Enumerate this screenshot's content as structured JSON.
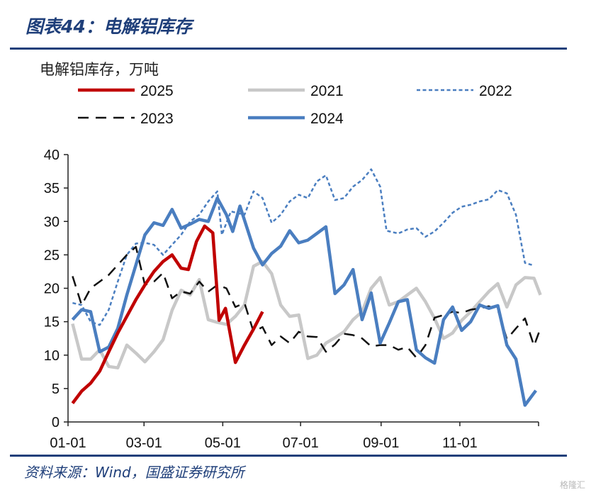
{
  "header": {
    "title": "图表44：电解铝库存"
  },
  "source": "资料来源：Wind，国盛证券研究所",
  "watermark": "格隆汇",
  "chart_data": {
    "type": "line",
    "ylabel": "电解铝库存，万吨",
    "ylim": [
      0,
      40
    ],
    "yticks": [
      0,
      5,
      10,
      15,
      20,
      25,
      30,
      35,
      40
    ],
    "xlim": [
      0,
      52
    ],
    "xticks": [
      {
        "label": "01-01",
        "x": 0
      },
      {
        "label": "03-01",
        "x": 8.4
      },
      {
        "label": "05-01",
        "x": 17.1
      },
      {
        "label": "07-01",
        "x": 25.7
      },
      {
        "label": "09-01",
        "x": 34.6
      },
      {
        "label": "11-01",
        "x": 43.3
      }
    ],
    "legend_order": [
      "2025",
      "2021",
      "2022",
      "2023",
      "2024"
    ],
    "series": [
      {
        "name": "2025",
        "color": "#c00000",
        "style": "solid",
        "width": 4.5,
        "points": [
          [
            0.5,
            2.8
          ],
          [
            1.5,
            4.6
          ],
          [
            2.5,
            5.8
          ],
          [
            3.5,
            7.6
          ],
          [
            4.5,
            10.5
          ],
          [
            5.5,
            13.3
          ],
          [
            6.5,
            15.8
          ],
          [
            7.5,
            18.3
          ],
          [
            8.5,
            20.5
          ],
          [
            9.5,
            22.5
          ],
          [
            10.5,
            24
          ],
          [
            11.5,
            25
          ],
          [
            12.5,
            23
          ],
          [
            13.3,
            22.8
          ],
          [
            14.2,
            27
          ],
          [
            15.1,
            29.3
          ],
          [
            16,
            28.3
          ],
          [
            16.7,
            15.2
          ],
          [
            17.4,
            17
          ],
          [
            18.5,
            8.9
          ],
          [
            19.5,
            11.5
          ],
          [
            20.5,
            13.9
          ],
          [
            21.5,
            16.5
          ]
        ]
      },
      {
        "name": "2021",
        "color": "#c8c8c8",
        "style": "solid",
        "width": 4.5,
        "points": [
          [
            0.5,
            14.7
          ],
          [
            1.5,
            9.4
          ],
          [
            2.5,
            9.4
          ],
          [
            3.5,
            10.8
          ],
          [
            4.5,
            8.3
          ],
          [
            5.5,
            8.1
          ],
          [
            6.5,
            11.5
          ],
          [
            7.5,
            10.3
          ],
          [
            8.5,
            9
          ],
          [
            9.5,
            10.5
          ],
          [
            10.5,
            12.3
          ],
          [
            11.5,
            16.7
          ],
          [
            12.5,
            19.7
          ],
          [
            13.5,
            19
          ],
          [
            14.5,
            21.3
          ],
          [
            15.5,
            15.3
          ],
          [
            16.5,
            14.9
          ],
          [
            17.5,
            14.6
          ],
          [
            18.5,
            15.8
          ],
          [
            19.5,
            17.5
          ],
          [
            20.5,
            23.3
          ],
          [
            21.5,
            24
          ],
          [
            22.5,
            22.2
          ],
          [
            23.5,
            17.5
          ],
          [
            24.5,
            15.8
          ],
          [
            25.5,
            16
          ],
          [
            26.5,
            9.5
          ],
          [
            27.5,
            10
          ],
          [
            28.5,
            11.8
          ],
          [
            29.5,
            12.6
          ],
          [
            30.5,
            13.5
          ],
          [
            31.5,
            15.3
          ],
          [
            32.5,
            16.5
          ],
          [
            33.5,
            20
          ],
          [
            34.5,
            21.6
          ],
          [
            35.5,
            17.5
          ],
          [
            36.5,
            18
          ],
          [
            37.5,
            19
          ],
          [
            38.5,
            20
          ],
          [
            39.5,
            18
          ],
          [
            40.5,
            15.5
          ],
          [
            41.5,
            12.5
          ],
          [
            42.5,
            13.3
          ],
          [
            43.5,
            15.2
          ],
          [
            44.5,
            16.5
          ],
          [
            45.5,
            18
          ],
          [
            46.5,
            19.5
          ],
          [
            47.5,
            20.7
          ],
          [
            48.5,
            17.2
          ],
          [
            49.5,
            20.5
          ],
          [
            50.5,
            21.6
          ],
          [
            51.5,
            21.5
          ],
          [
            52.2,
            19
          ]
        ]
      },
      {
        "name": "2022",
        "color": "#4a7ec0",
        "style": "dotted",
        "width": 2.5,
        "points": [
          [
            0.5,
            17.8
          ],
          [
            1.5,
            17.5
          ],
          [
            2.5,
            15
          ],
          [
            3.5,
            14.5
          ],
          [
            4.5,
            16.8
          ],
          [
            5.5,
            21
          ],
          [
            6.5,
            25
          ],
          [
            7.5,
            26.7
          ],
          [
            8.5,
            26.8
          ],
          [
            9.5,
            26.5
          ],
          [
            10.5,
            25
          ],
          [
            11.5,
            26.5
          ],
          [
            12.5,
            28
          ],
          [
            13.5,
            30
          ],
          [
            14.5,
            31
          ],
          [
            15.5,
            33
          ],
          [
            16.5,
            34.5
          ],
          [
            17,
            28
          ],
          [
            18,
            31.5
          ],
          [
            19.5,
            31
          ],
          [
            20.5,
            34.5
          ],
          [
            21.5,
            33.5
          ],
          [
            22.5,
            29.8
          ],
          [
            23.5,
            31
          ],
          [
            24.5,
            33
          ],
          [
            25.5,
            34
          ],
          [
            26.5,
            33.5
          ],
          [
            27.5,
            36
          ],
          [
            28.5,
            36.9
          ],
          [
            29.5,
            33.2
          ],
          [
            30.5,
            33.5
          ],
          [
            31.5,
            35.2
          ],
          [
            32.5,
            36.2
          ],
          [
            33.5,
            37.8
          ],
          [
            34.5,
            35.2
          ],
          [
            35.2,
            28.6
          ],
          [
            36.5,
            28.2
          ],
          [
            37.5,
            28.8
          ],
          [
            38.5,
            29
          ],
          [
            39.5,
            27.7
          ],
          [
            40.5,
            28.5
          ],
          [
            41.5,
            29.8
          ],
          [
            42.5,
            31.3
          ],
          [
            43.5,
            32.2
          ],
          [
            44.5,
            32.5
          ],
          [
            45.5,
            33
          ],
          [
            46.5,
            33.3
          ],
          [
            47.5,
            34.7
          ],
          [
            48.5,
            34.2
          ],
          [
            49.5,
            31
          ],
          [
            50.5,
            23.8
          ],
          [
            51.5,
            23.4
          ]
        ]
      },
      {
        "name": "2023",
        "color": "#111111",
        "style": "dashed",
        "width": 2.5,
        "points": [
          [
            0.5,
            21.8
          ],
          [
            1.5,
            17.5
          ],
          [
            2.5,
            20
          ],
          [
            3.5,
            21
          ],
          [
            4.5,
            22
          ],
          [
            5.5,
            23.5
          ],
          [
            6.5,
            25
          ],
          [
            7.5,
            26.2
          ],
          [
            8.5,
            20.5
          ],
          [
            9.5,
            21
          ],
          [
            10.5,
            22.3
          ],
          [
            11.5,
            18.5
          ],
          [
            12.5,
            19.5
          ],
          [
            13.5,
            19.2
          ],
          [
            14.5,
            21
          ],
          [
            15.5,
            19.5
          ],
          [
            16.5,
            20.5
          ],
          [
            17.5,
            20
          ],
          [
            18.5,
            17.2
          ],
          [
            19.5,
            17.8
          ],
          [
            20.5,
            13.5
          ],
          [
            21.5,
            14.2
          ],
          [
            22.5,
            11.5
          ],
          [
            23.5,
            12.8
          ],
          [
            24.5,
            11.8
          ],
          [
            25.5,
            13.5
          ],
          [
            26.5,
            12.8
          ],
          [
            27.5,
            12.7
          ],
          [
            28.5,
            10.5
          ],
          [
            29.5,
            11.6
          ],
          [
            30.5,
            13.2
          ],
          [
            31.5,
            13
          ],
          [
            32.5,
            12.5
          ],
          [
            33.5,
            11.3
          ],
          [
            34.5,
            11.5
          ],
          [
            35.5,
            11.5
          ],
          [
            36.5,
            10.8
          ],
          [
            37.5,
            11.2
          ],
          [
            38.5,
            9.6
          ],
          [
            39.5,
            11.5
          ],
          [
            40.5,
            15.6
          ],
          [
            41.5,
            16
          ],
          [
            42.5,
            16.5
          ],
          [
            43.5,
            16.3
          ],
          [
            44.5,
            16.8
          ],
          [
            45.5,
            17
          ],
          [
            46.5,
            17.3
          ],
          [
            47.5,
            16.8
          ],
          [
            48.5,
            12.4
          ],
          [
            49.5,
            14
          ],
          [
            50.5,
            15.5
          ],
          [
            51.5,
            11.4
          ],
          [
            52.2,
            14
          ]
        ]
      },
      {
        "name": "2024",
        "color": "#4a7ec0",
        "style": "solid",
        "width": 4.5,
        "points": [
          [
            0.5,
            15.3
          ],
          [
            1.5,
            16.8
          ],
          [
            2.5,
            16.5
          ],
          [
            3.5,
            10.5
          ],
          [
            4.5,
            11.2
          ],
          [
            5.5,
            14
          ],
          [
            6.5,
            19
          ],
          [
            7.5,
            23.5
          ],
          [
            8.5,
            28
          ],
          [
            9.5,
            29.8
          ],
          [
            10.5,
            29.4
          ],
          [
            11.5,
            31.8
          ],
          [
            12.5,
            29
          ],
          [
            13.5,
            29.6
          ],
          [
            14.5,
            30.3
          ],
          [
            15.5,
            30
          ],
          [
            16.5,
            33.5
          ],
          [
            17.5,
            31
          ],
          [
            18.2,
            28.5
          ],
          [
            19,
            32.3
          ],
          [
            20.5,
            26
          ],
          [
            21.5,
            23.5
          ],
          [
            22.5,
            25.2
          ],
          [
            23.5,
            26.3
          ],
          [
            24.5,
            28.6
          ],
          [
            25.5,
            26.8
          ],
          [
            26.5,
            27.2
          ],
          [
            27.5,
            28.2
          ],
          [
            28.5,
            29.2
          ],
          [
            29.5,
            19.2
          ],
          [
            30.5,
            20.5
          ],
          [
            31.5,
            22.8
          ],
          [
            32.5,
            15.3
          ],
          [
            33.5,
            19.3
          ],
          [
            34.5,
            11.8
          ],
          [
            35.5,
            14.8
          ],
          [
            36.5,
            18
          ],
          [
            37.5,
            18.3
          ],
          [
            38.5,
            10.8
          ],
          [
            39.5,
            9.6
          ],
          [
            40.5,
            8.8
          ],
          [
            41.5,
            15.3
          ],
          [
            42.5,
            17.2
          ],
          [
            43.5,
            13.7
          ],
          [
            44.5,
            15
          ],
          [
            45.5,
            17.5
          ],
          [
            46.5,
            17
          ],
          [
            47.5,
            17.4
          ],
          [
            48.5,
            11.5
          ],
          [
            49.5,
            9.4
          ],
          [
            50.5,
            2.5
          ],
          [
            51.7,
            4.7
          ]
        ]
      }
    ]
  }
}
